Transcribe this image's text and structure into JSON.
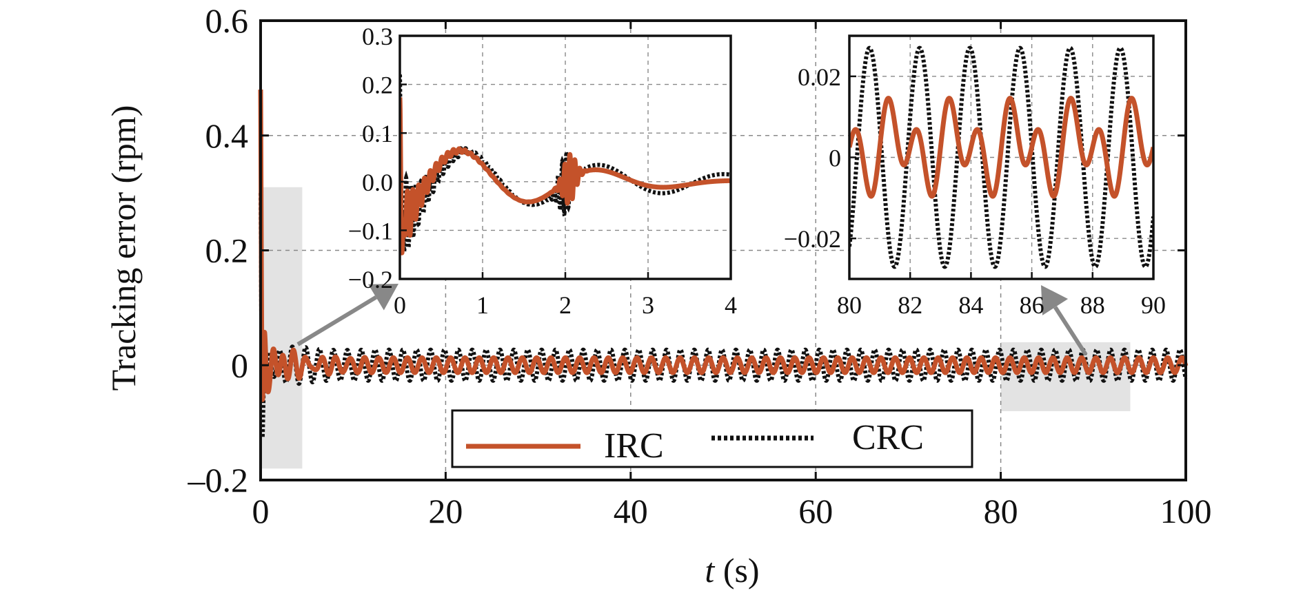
{
  "chart_data": [
    {
      "id": "main",
      "type": "line",
      "title": "",
      "xlabel": "t (s)",
      "xlabel_italic_part": "t",
      "xlabel_rest": " (s)",
      "ylabel": "Tracking error (rpm)",
      "xlim": [
        0,
        100
      ],
      "ylim": [
        -0.2,
        0.6
      ],
      "xticks": [
        0,
        20,
        40,
        60,
        80,
        100
      ],
      "xtick_labels": [
        "0",
        "20",
        "40",
        "60",
        "80",
        "100"
      ],
      "yticks": [
        -0.2,
        0,
        0.2,
        0.4,
        0.6
      ],
      "ytick_labels": [
        "–0.2",
        "0",
        "0.2",
        "0.4",
        "0.6"
      ],
      "grid": true,
      "legend_position": "bottom-center",
      "highlight_regions": [
        {
          "x": [
            0,
            4.5
          ],
          "y": [
            -0.18,
            0.31
          ]
        },
        {
          "x": [
            80,
            94
          ],
          "y": [
            -0.08,
            0.04
          ]
        }
      ],
      "series": [
        {
          "name": "IRC",
          "style": "solid",
          "color": "#C4522A",
          "transient_peak": 0.48,
          "transient_min": -0.13,
          "steady_amplitude": 0.013
        },
        {
          "name": "CRC",
          "style": "dotted",
          "color": "#111111",
          "transient_peak": 0.3,
          "transient_min": -0.14,
          "steady_amplitude": 0.027
        }
      ]
    },
    {
      "id": "inset1",
      "type": "line",
      "xlim": [
        0,
        4
      ],
      "ylim": [
        -0.2,
        0.3
      ],
      "xticks": [
        0,
        1,
        2,
        3,
        4
      ],
      "xtick_labels": [
        "0",
        "1",
        "2",
        "3",
        "4"
      ],
      "yticks": [
        -0.2,
        -0.1,
        0,
        0.1,
        0.2,
        0.3
      ],
      "ytick_labels": [
        "−0.2",
        "−0.1",
        "0.0",
        "0.1",
        "0.2",
        "0.3"
      ],
      "grid": true
    },
    {
      "id": "inset2",
      "type": "line",
      "xlim": [
        80,
        90
      ],
      "ylim": [
        -0.03,
        0.03
      ],
      "xticks": [
        80,
        82,
        84,
        86,
        88,
        90
      ],
      "xtick_labels": [
        "80",
        "82",
        "84",
        "86",
        "88",
        "90"
      ],
      "yticks": [
        -0.02,
        0,
        0.02
      ],
      "ytick_labels": [
        "−0.02",
        "0",
        "0.02"
      ],
      "grid": true
    }
  ]
}
